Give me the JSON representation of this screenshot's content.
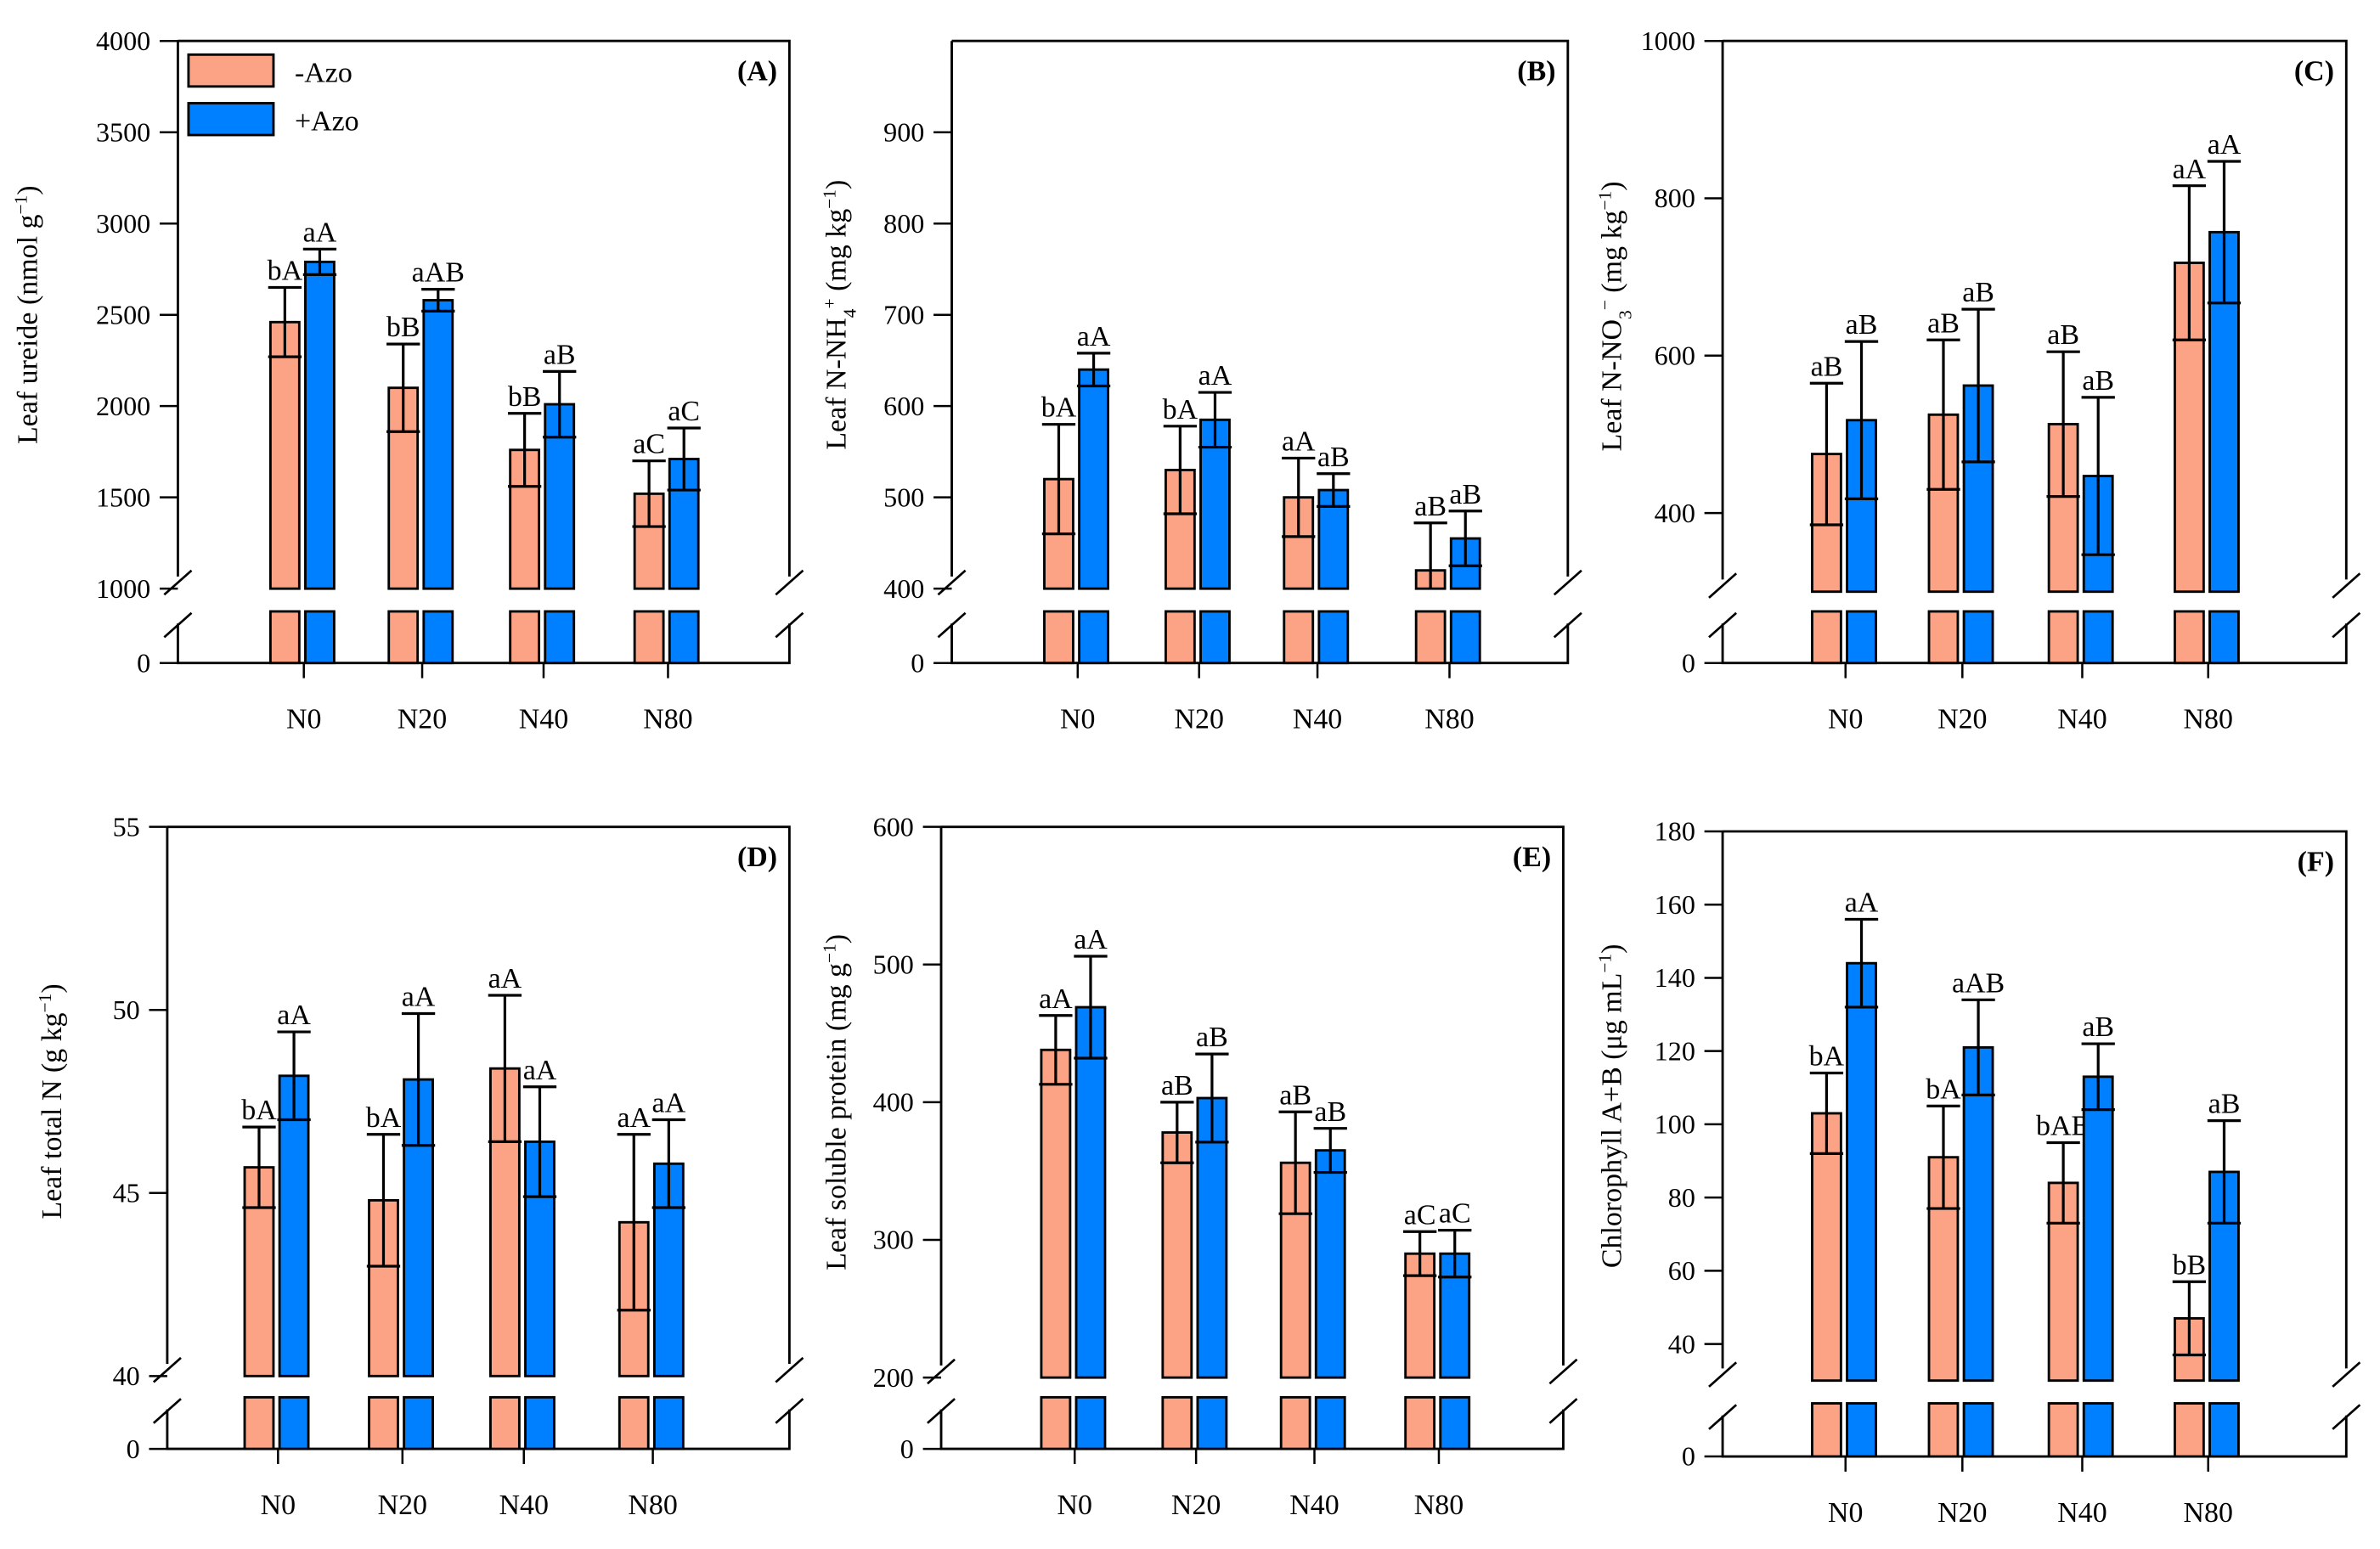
{
  "colors": {
    "minus": "#FBA384",
    "plus": "#0080FF"
  },
  "legend": [
    "-Azo",
    "+Azo"
  ],
  "chart_data": [
    {
      "type": "bar",
      "panel": "(A)",
      "categories": [
        "N0",
        "N20",
        "N40",
        "N80"
      ],
      "ylabel": [
        {
          "t": "Leaf ureide (nmol g"
        },
        {
          "t": "−1",
          "s": "sup"
        },
        {
          "t": ")"
        }
      ],
      "yticks": [
        1000,
        1500,
        2000,
        2500,
        3000,
        3500,
        4000
      ],
      "ylim": [
        1000,
        4000
      ],
      "break_zero": "0",
      "series": [
        {
          "name": "-Azo",
          "values": [
            2460,
            2100,
            1760,
            1520
          ],
          "errors": [
            190,
            240,
            200,
            180
          ],
          "letters": [
            "bA",
            "bB",
            "bB",
            "aC"
          ]
        },
        {
          "name": "+Azo",
          "values": [
            2790,
            2580,
            2010,
            1710
          ],
          "errors": [
            70,
            60,
            180,
            170
          ],
          "letters": [
            "aA",
            "aAB",
            "aB",
            "aC"
          ]
        }
      ]
    },
    {
      "type": "bar",
      "panel": "(B)",
      "categories": [
        "N0",
        "N20",
        "N40",
        "N80"
      ],
      "ylabel": [
        {
          "t": "Leaf N-NH"
        },
        {
          "t": "4",
          "s": "sub"
        },
        {
          "t": "+",
          "s": "sup"
        },
        {
          "t": " (mg kg"
        },
        {
          "t": "−1",
          "s": "sup"
        },
        {
          "t": ")"
        }
      ],
      "yticks": [
        400,
        500,
        600,
        700,
        800,
        900
      ],
      "ylim": [
        400,
        1000
      ],
      "break_zero": "0",
      "series": [
        {
          "name": "-Azo",
          "values": [
            520,
            530,
            500,
            420
          ],
          "errors": [
            60,
            48,
            43,
            52
          ],
          "letters": [
            "bA",
            "bA",
            "aA",
            "aB"
          ]
        },
        {
          "name": "+Azo",
          "values": [
            640,
            585,
            508,
            455
          ],
          "errors": [
            18,
            30,
            18,
            30
          ],
          "letters": [
            "aA",
            "aA",
            "aB",
            "aB"
          ]
        }
      ]
    },
    {
      "type": "bar",
      "panel": "(C)",
      "categories": [
        "N0",
        "N20",
        "N40",
        "N80"
      ],
      "ylabel": [
        {
          "t": "Leaf N-NO"
        },
        {
          "t": "3",
          "s": "sub"
        },
        {
          "t": "−",
          "s": "sup"
        },
        {
          "t": " (mg kg"
        },
        {
          "t": "−1",
          "s": "sup"
        },
        {
          "t": ")"
        }
      ],
      "yticks": [
        400,
        600,
        800,
        1000
      ],
      "ylim": [
        300,
        1000
      ],
      "break_zero": "0",
      "series": [
        {
          "name": "-Azo",
          "values": [
            475,
            525,
            513,
            718
          ],
          "errors": [
            90,
            95,
            92,
            98
          ],
          "letters": [
            "aB",
            "aB",
            "aB",
            "aA"
          ]
        },
        {
          "name": "+Azo",
          "values": [
            518,
            562,
            447,
            757
          ],
          "errors": [
            100,
            97,
            100,
            90
          ],
          "letters": [
            "aB",
            "aB",
            "aB",
            "aA"
          ]
        }
      ]
    },
    {
      "type": "bar",
      "panel": "(D)",
      "categories": [
        "N0",
        "N20",
        "N40",
        "N80"
      ],
      "ylabel": [
        {
          "t": "Leaf total N (g kg"
        },
        {
          "t": "−1",
          "s": "sup"
        },
        {
          "t": ")"
        }
      ],
      "yticks": [
        40,
        45,
        50,
        55
      ],
      "ylim": [
        40,
        55
      ],
      "break_zero": "0",
      "series": [
        {
          "name": "-Azo",
          "values": [
            45.7,
            44.8,
            48.4,
            44.2
          ],
          "errors": [
            1.1,
            1.8,
            2.0,
            2.4
          ],
          "letters": [
            "bA",
            "bA",
            "aA",
            "aA"
          ]
        },
        {
          "name": "+Azo",
          "values": [
            48.2,
            48.1,
            46.4,
            45.8
          ],
          "errors": [
            1.2,
            1.8,
            1.5,
            1.2
          ],
          "letters": [
            "aA",
            "aA",
            "aA",
            "aA"
          ]
        }
      ]
    },
    {
      "type": "bar",
      "panel": "(E)",
      "categories": [
        "N0",
        "N20",
        "N40",
        "N80"
      ],
      "ylabel": [
        {
          "t": "Leaf soluble protein (mg g"
        },
        {
          "t": "−1",
          "s": "sup"
        },
        {
          "t": ")"
        }
      ],
      "yticks": [
        200,
        300,
        400,
        500,
        600
      ],
      "ylim": [
        200,
        600
      ],
      "break_zero": "0",
      "series": [
        {
          "name": "-Azo",
          "values": [
            438,
            378,
            356,
            290
          ],
          "errors": [
            25,
            22,
            37,
            16
          ],
          "letters": [
            "aA",
            "aB",
            "aB",
            "aC"
          ]
        },
        {
          "name": "+Azo",
          "values": [
            469,
            403,
            365,
            290
          ],
          "errors": [
            37,
            32,
            16,
            17
          ],
          "letters": [
            "aA",
            "aB",
            "aB",
            "aC"
          ]
        }
      ]
    },
    {
      "type": "bar",
      "panel": "(F)",
      "categories": [
        "N0",
        "N20",
        "N40",
        "N80"
      ],
      "ylabel": [
        {
          "t": "Chlorophyll A+B (μg mL"
        },
        {
          "t": "−1",
          "s": "sup"
        },
        {
          "t": ")"
        }
      ],
      "yticks": [
        40,
        60,
        80,
        100,
        120,
        140,
        160,
        180
      ],
      "ylim": [
        30,
        180
      ],
      "break_zero": "0",
      "series": [
        {
          "name": "-Azo",
          "values": [
            103,
            91,
            84,
            47
          ],
          "errors": [
            11,
            14,
            11,
            10
          ],
          "letters": [
            "bA",
            "bA",
            "bAB",
            "bB"
          ]
        },
        {
          "name": "+Azo",
          "values": [
            144,
            121,
            113,
            87
          ],
          "errors": [
            12,
            13,
            9,
            14
          ],
          "letters": [
            "aA",
            "aAB",
            "aB",
            "aB"
          ]
        }
      ]
    }
  ]
}
